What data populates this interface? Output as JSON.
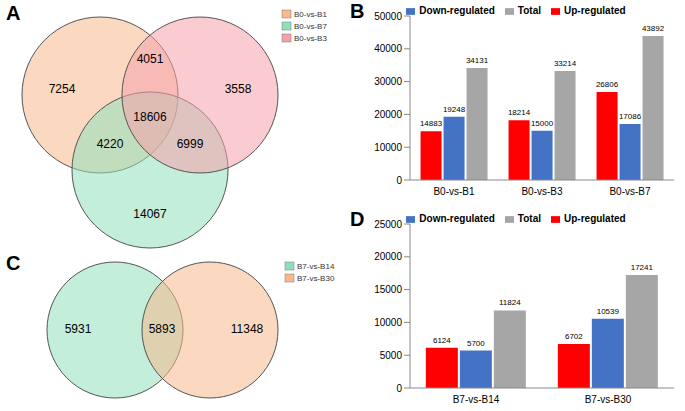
{
  "chart_data": [
    {
      "type": "venn",
      "title": "A",
      "legend": "top-right",
      "sets": [
        {
          "name": "B0-vs-B1",
          "color": "#f8b98c"
        },
        {
          "name": "B0-vs-B7",
          "color": "#8fe0bc"
        },
        {
          "name": "B0-vs-B3",
          "color": "#f6a0aa"
        }
      ],
      "regions": [
        {
          "sets": [
            0
          ],
          "value": 7254
        },
        {
          "sets": [
            2
          ],
          "value": 3558
        },
        {
          "sets": [
            1
          ],
          "value": 14067
        },
        {
          "sets": [
            0,
            2
          ],
          "value": 4051
        },
        {
          "sets": [
            0,
            1
          ],
          "value": 4220
        },
        {
          "sets": [
            1,
            2
          ],
          "value": 6999
        },
        {
          "sets": [
            0,
            1,
            2
          ],
          "value": 18606
        }
      ]
    },
    {
      "type": "bar",
      "title": "B",
      "legend": "top",
      "data_labels": true,
      "grid": false,
      "categories": [
        "B0-vs-B1",
        "B0-vs-B3",
        "B0-vs-B7"
      ],
      "series": [
        {
          "name": "Up-regulated",
          "color": "#ff0000",
          "values": [
            14883,
            18214,
            26806
          ]
        },
        {
          "name": "Down-regulated",
          "color": "#4472c4",
          "values": [
            19248,
            15000,
            17086
          ]
        },
        {
          "name": "Total",
          "color": "#a6a6a6",
          "values": [
            34131,
            33214,
            43892
          ]
        }
      ],
      "ylim": [
        0,
        50000
      ],
      "yticks": [
        0,
        10000,
        20000,
        30000,
        40000,
        50000
      ]
    },
    {
      "type": "venn",
      "title": "C",
      "legend": "top-right",
      "sets": [
        {
          "name": "B7-vs-B14",
          "color": "#8fe0bc"
        },
        {
          "name": "B7-vs-B30",
          "color": "#f8b98c"
        }
      ],
      "regions": [
        {
          "sets": [
            0
          ],
          "value": 5931
        },
        {
          "sets": [
            0,
            1
          ],
          "value": 5893
        },
        {
          "sets": [
            1
          ],
          "value": 11348
        }
      ]
    },
    {
      "type": "bar",
      "title": "D",
      "legend": "top",
      "data_labels": true,
      "grid": false,
      "categories": [
        "B7-vs-B14",
        "B7-vs-B30"
      ],
      "series": [
        {
          "name": "Up-regulated",
          "color": "#ff0000",
          "values": [
            6124,
            6702
          ]
        },
        {
          "name": "Down-regulated",
          "color": "#4472c4",
          "values": [
            5700,
            10539
          ]
        },
        {
          "name": "Total",
          "color": "#a6a6a6",
          "values": [
            11824,
            17241
          ]
        }
      ],
      "ylim": [
        0,
        25000
      ],
      "yticks": [
        0,
        5000,
        10000,
        15000,
        20000,
        25000
      ]
    }
  ]
}
